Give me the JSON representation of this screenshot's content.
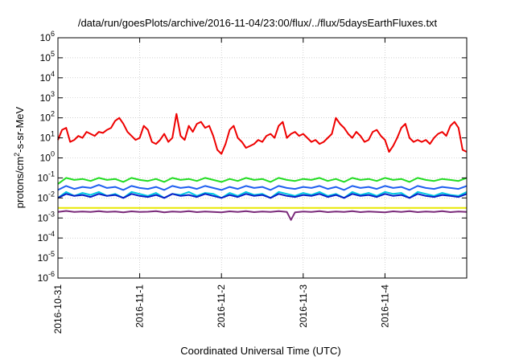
{
  "chart_data": {
    "type": "line",
    "title": "/data/run/goesPlots/archive/2016-11-04/23:00/flux/../flux/5daysEarthFluxes.txt",
    "xlabel": "Coordinated Universal Time (UTC)",
    "ylabel": {
      "prefix": "protons/cm",
      "sup": "2",
      "suffix": "-s-sr-MeV"
    },
    "yscale": "log",
    "ylim": [
      1e-06,
      1000000.0
    ],
    "y_ticks": [
      {
        "value": -6,
        "base": "10",
        "exp": "-6"
      },
      {
        "value": -5,
        "base": "10",
        "exp": "-5"
      },
      {
        "value": -4,
        "base": "10",
        "exp": "-4"
      },
      {
        "value": -3,
        "base": "10",
        "exp": "-3"
      },
      {
        "value": -2,
        "base": "10",
        "exp": "-2"
      },
      {
        "value": -1,
        "base": "10",
        "exp": "-1"
      },
      {
        "value": 0,
        "base": "10",
        "exp": "0"
      },
      {
        "value": 1,
        "base": "10",
        "exp": "1"
      },
      {
        "value": 2,
        "base": "10",
        "exp": "2"
      },
      {
        "value": 3,
        "base": "10",
        "exp": "3"
      },
      {
        "value": 4,
        "base": "10",
        "exp": "4"
      },
      {
        "value": 5,
        "base": "10",
        "exp": "5"
      },
      {
        "value": 6,
        "base": "10",
        "exp": "6"
      }
    ],
    "xlim": [
      "2016-10-31",
      "2016-11-05"
    ],
    "x_ticks": [
      "2016-10-31",
      "2016-11-1",
      "2016-11-2",
      "2016-11-3",
      "2016-11-4"
    ],
    "grid": true,
    "series": [
      {
        "color": "#ee0000",
        "x_days": [
          0.0,
          0.05,
          0.1,
          0.15,
          0.2,
          0.25,
          0.3,
          0.35,
          0.4,
          0.45,
          0.5,
          0.55,
          0.6,
          0.65,
          0.7,
          0.75,
          0.8,
          0.85,
          0.9,
          0.95,
          1.0,
          1.05,
          1.1,
          1.15,
          1.2,
          1.25,
          1.3,
          1.35,
          1.4,
          1.45,
          1.5,
          1.55,
          1.6,
          1.65,
          1.7,
          1.75,
          1.8,
          1.85,
          1.9,
          1.95,
          2.0,
          2.05,
          2.1,
          2.15,
          2.2,
          2.25,
          2.3,
          2.35,
          2.4,
          2.45,
          2.5,
          2.55,
          2.6,
          2.65,
          2.7,
          2.75,
          2.8,
          2.85,
          2.9,
          2.95,
          3.0,
          3.05,
          3.1,
          3.15,
          3.2,
          3.25,
          3.3,
          3.35,
          3.4,
          3.45,
          3.5,
          3.55,
          3.6,
          3.65,
          3.7,
          3.75,
          3.8,
          3.85,
          3.9,
          3.95,
          4.0,
          4.05,
          4.1,
          4.15,
          4.2,
          4.25,
          4.3,
          4.35,
          4.4,
          4.45,
          4.5,
          4.55,
          4.6,
          4.65,
          4.7,
          4.75,
          4.8,
          4.85,
          4.9,
          4.95,
          5.0
        ],
        "log10_values": [
          0.9,
          1.4,
          1.5,
          0.8,
          0.9,
          1.1,
          1.0,
          1.3,
          1.2,
          1.1,
          1.3,
          1.25,
          1.4,
          1.5,
          1.85,
          2.0,
          1.7,
          1.3,
          1.1,
          0.9,
          1.0,
          1.6,
          1.4,
          0.8,
          0.7,
          0.9,
          1.2,
          0.8,
          1.0,
          2.2,
          1.1,
          0.9,
          1.6,
          1.3,
          1.7,
          1.8,
          1.5,
          1.6,
          1.1,
          0.4,
          0.2,
          0.7,
          1.4,
          1.6,
          1.0,
          0.8,
          0.5,
          0.6,
          0.7,
          0.9,
          0.8,
          1.1,
          1.2,
          1.0,
          1.6,
          1.8,
          1.0,
          1.2,
          1.3,
          1.1,
          1.2,
          1.0,
          0.8,
          0.9,
          0.7,
          0.8,
          1.0,
          1.2,
          2.0,
          1.7,
          1.5,
          1.2,
          1.0,
          1.3,
          1.1,
          0.8,
          0.9,
          1.3,
          1.4,
          1.1,
          0.9,
          0.3,
          0.6,
          1.0,
          1.5,
          1.7,
          1.0,
          0.8,
          0.9,
          0.8,
          0.9,
          0.7,
          1.0,
          1.2,
          1.3,
          1.1,
          1.6,
          1.8,
          1.5,
          0.4,
          0.3
        ]
      },
      {
        "color": "#22dd22",
        "x_days": [
          0.0,
          0.1,
          0.2,
          0.3,
          0.4,
          0.5,
          0.6,
          0.7,
          0.8,
          0.9,
          1.0,
          1.1,
          1.2,
          1.3,
          1.4,
          1.5,
          1.6,
          1.7,
          1.8,
          1.9,
          2.0,
          2.1,
          2.2,
          2.3,
          2.4,
          2.5,
          2.6,
          2.7,
          2.8,
          2.9,
          3.0,
          3.1,
          3.2,
          3.3,
          3.4,
          3.5,
          3.6,
          3.7,
          3.8,
          3.9,
          4.0,
          4.1,
          4.2,
          4.3,
          4.4,
          4.5,
          4.6,
          4.7,
          4.8,
          4.9,
          5.0
        ],
        "log10_values": [
          -1.3,
          -1.0,
          -1.1,
          -1.05,
          -1.15,
          -1.0,
          -1.1,
          -1.05,
          -1.2,
          -1.0,
          -1.1,
          -1.15,
          -1.05,
          -1.2,
          -1.0,
          -1.1,
          -1.05,
          -1.15,
          -1.0,
          -1.1,
          -1.2,
          -1.05,
          -1.15,
          -1.0,
          -1.1,
          -1.05,
          -1.2,
          -1.0,
          -1.1,
          -1.15,
          -1.05,
          -1.1,
          -1.0,
          -1.15,
          -1.05,
          -1.2,
          -1.0,
          -1.1,
          -1.05,
          -1.15,
          -1.0,
          -1.1,
          -1.05,
          -1.2,
          -1.0,
          -1.1,
          -1.15,
          -1.05,
          -1.1,
          -1.15,
          -1.0
        ]
      },
      {
        "color": "#00c8e0",
        "x_days": [
          0.0,
          0.1,
          0.2,
          0.3,
          0.4,
          0.5,
          0.6,
          0.7,
          0.8,
          0.9,
          1.0,
          1.1,
          1.2,
          1.3,
          1.4,
          1.5,
          1.6,
          1.7,
          1.8,
          1.9,
          2.0,
          2.1,
          2.2,
          2.3,
          2.4,
          2.5,
          2.6,
          2.7,
          2.8,
          2.9,
          3.0,
          3.1,
          3.2,
          3.3,
          3.4,
          3.5,
          3.6,
          3.7,
          3.8,
          3.9,
          4.0,
          4.1,
          4.2,
          4.3,
          4.4,
          4.5,
          4.6,
          4.7,
          4.8,
          4.9,
          5.0
        ],
        "log10_values": [
          -2.0,
          -1.7,
          -1.9,
          -1.75,
          -1.85,
          -1.7,
          -1.9,
          -1.8,
          -2.0,
          -1.7,
          -1.8,
          -1.9,
          -1.75,
          -2.0,
          -1.8,
          -1.85,
          -1.7,
          -1.9,
          -1.75,
          -1.8,
          -2.0,
          -1.75,
          -1.9,
          -1.7,
          -1.85,
          -1.8,
          -2.0,
          -1.7,
          -1.8,
          -1.9,
          -1.75,
          -1.85,
          -1.7,
          -1.9,
          -1.8,
          -2.0,
          -1.7,
          -1.85,
          -1.75,
          -1.9,
          -1.7,
          -1.8,
          -1.75,
          -2.0,
          -1.7,
          -1.8,
          -1.9,
          -1.75,
          -1.85,
          -1.9,
          -1.7
        ]
      },
      {
        "color": "#1e5ff0",
        "x_days": [
          0.0,
          0.1,
          0.2,
          0.3,
          0.4,
          0.5,
          0.6,
          0.7,
          0.8,
          0.9,
          1.0,
          1.1,
          1.2,
          1.3,
          1.4,
          1.5,
          1.6,
          1.7,
          1.8,
          1.9,
          2.0,
          2.1,
          2.2,
          2.3,
          2.4,
          2.5,
          2.6,
          2.7,
          2.8,
          2.9,
          3.0,
          3.1,
          3.2,
          3.3,
          3.4,
          3.5,
          3.6,
          3.7,
          3.8,
          3.9,
          4.0,
          4.1,
          4.2,
          4.3,
          4.4,
          4.5,
          4.6,
          4.7,
          4.8,
          4.9,
          5.0
        ],
        "log10_values": [
          -1.6,
          -1.4,
          -1.55,
          -1.45,
          -1.5,
          -1.35,
          -1.5,
          -1.45,
          -1.6,
          -1.4,
          -1.5,
          -1.55,
          -1.45,
          -1.6,
          -1.4,
          -1.5,
          -1.45,
          -1.55,
          -1.4,
          -1.5,
          -1.6,
          -1.45,
          -1.55,
          -1.4,
          -1.5,
          -1.45,
          -1.6,
          -1.4,
          -1.5,
          -1.55,
          -1.45,
          -1.5,
          -1.4,
          -1.55,
          -1.45,
          -1.6,
          -1.4,
          -1.5,
          -1.45,
          -1.55,
          -1.4,
          -1.5,
          -1.45,
          -1.6,
          -1.4,
          -1.5,
          -1.55,
          -1.45,
          -1.5,
          -1.55,
          -1.4
        ]
      },
      {
        "color": "#0a1ec8",
        "x_days": [
          0.0,
          0.1,
          0.2,
          0.3,
          0.4,
          0.5,
          0.6,
          0.7,
          0.8,
          0.9,
          1.0,
          1.1,
          1.2,
          1.3,
          1.4,
          1.5,
          1.6,
          1.7,
          1.8,
          1.9,
          2.0,
          2.1,
          2.2,
          2.3,
          2.4,
          2.5,
          2.6,
          2.7,
          2.8,
          2.9,
          3.0,
          3.1,
          3.2,
          3.3,
          3.4,
          3.5,
          3.6,
          3.7,
          3.8,
          3.9,
          4.0,
          4.1,
          4.2,
          4.3,
          4.4,
          4.5,
          4.6,
          4.7,
          4.8,
          4.9,
          5.0
        ],
        "log10_values": [
          -2.0,
          -1.8,
          -1.9,
          -1.85,
          -1.95,
          -1.8,
          -1.9,
          -1.85,
          -2.0,
          -1.8,
          -1.9,
          -1.95,
          -1.85,
          -2.0,
          -1.8,
          -1.9,
          -1.85,
          -1.95,
          -1.8,
          -1.9,
          -2.0,
          -1.85,
          -1.95,
          -1.8,
          -1.9,
          -1.85,
          -2.0,
          -1.8,
          -1.9,
          -1.95,
          -1.85,
          -1.9,
          -1.8,
          -1.95,
          -1.85,
          -2.0,
          -1.8,
          -1.9,
          -1.85,
          -1.95,
          -1.8,
          -1.9,
          -1.85,
          -2.0,
          -1.8,
          -1.9,
          -1.95,
          -1.85,
          -1.9,
          -1.95,
          -1.8
        ]
      },
      {
        "color": "#e8e800",
        "x_days": [
          0.0,
          0.5,
          1.0,
          1.5,
          2.0,
          2.5,
          3.0,
          3.5,
          4.0,
          4.5,
          5.0
        ],
        "log10_values": [
          -2.5,
          -2.5,
          -2.5,
          -2.5,
          -2.5,
          -2.5,
          -2.5,
          -2.5,
          -2.5,
          -2.5,
          -2.5
        ]
      },
      {
        "color": "#7a2a7a",
        "x_days": [
          0.0,
          0.1,
          0.2,
          0.3,
          0.4,
          0.5,
          0.6,
          0.7,
          0.8,
          0.9,
          1.0,
          1.1,
          1.2,
          1.3,
          1.4,
          1.5,
          1.6,
          1.7,
          1.8,
          1.9,
          2.0,
          2.1,
          2.2,
          2.3,
          2.4,
          2.5,
          2.6,
          2.7,
          2.8,
          2.85,
          2.9,
          3.0,
          3.1,
          3.2,
          3.3,
          3.4,
          3.5,
          3.6,
          3.7,
          3.8,
          3.9,
          4.0,
          4.1,
          4.2,
          4.3,
          4.4,
          4.5,
          4.6,
          4.7,
          4.8,
          4.9,
          5.0
        ],
        "log10_values": [
          -2.7,
          -2.65,
          -2.7,
          -2.68,
          -2.7,
          -2.66,
          -2.7,
          -2.68,
          -2.72,
          -2.67,
          -2.7,
          -2.69,
          -2.66,
          -2.72,
          -2.68,
          -2.7,
          -2.66,
          -2.71,
          -2.68,
          -2.7,
          -2.72,
          -2.67,
          -2.7,
          -2.66,
          -2.71,
          -2.68,
          -2.7,
          -2.66,
          -2.7,
          -3.1,
          -2.72,
          -2.68,
          -2.7,
          -2.66,
          -2.71,
          -2.68,
          -2.7,
          -2.66,
          -2.71,
          -2.68,
          -2.7,
          -2.72,
          -2.67,
          -2.7,
          -2.66,
          -2.71,
          -2.68,
          -2.7,
          -2.66,
          -2.71,
          -2.68,
          -2.7
        ]
      }
    ]
  }
}
